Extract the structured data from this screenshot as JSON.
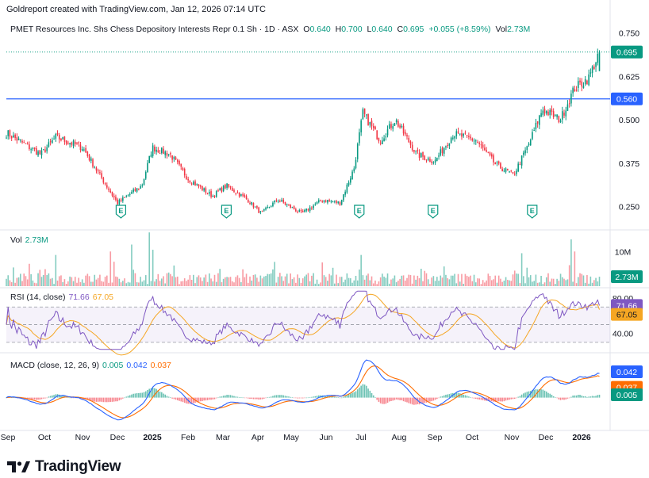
{
  "header": {
    "text": "Goldreport created with TradingView.com, Jan 12, 2026 07:14 UTC"
  },
  "legend": {
    "symbol": "PMET Resources Inc. Shs Chess Depository Interests Repr 0.1 Sh · 1D · ASX",
    "o_label": "O",
    "o": "0.640",
    "h_label": "H",
    "h": "0.700",
    "l_label": "L",
    "l": "0.640",
    "c_label": "C",
    "c": "0.695",
    "change": "+0.055 (+8.59%)",
    "vol_label": "Vol",
    "vol": "2.73M"
  },
  "volume_legend": {
    "label": "Vol",
    "value": "2.73M"
  },
  "rsi_legend": {
    "label": "RSI (14, close)",
    "rsi": "71.66",
    "ma": "67.05"
  },
  "macd_legend": {
    "label": "MACD (close, 12, 26, 9)",
    "hist": "0.005",
    "macd": "0.042",
    "signal": "0.037"
  },
  "footer": {
    "brand": "TradingView"
  },
  "colors": {
    "up": "#089981",
    "down": "#f23645",
    "rsi": "#7e57c2",
    "rsi_ma": "#f5a623",
    "macd": "#2962ff",
    "signal": "#ff6d00",
    "hline": "#2962ff"
  },
  "chart_data": [
    {
      "type": "candlestick",
      "title": "PMET Resources Inc. Shs Chess Depository Interests Repr 0.1 Sh · 1D · ASX",
      "x_tick_labels": [
        "Sep",
        "Oct",
        "Nov",
        "Dec",
        "2025",
        "Feb",
        "Mar",
        "Apr",
        "May",
        "Jun",
        "Jul",
        "Aug",
        "Sep",
        "Oct",
        "Nov",
        "Dec",
        "2026"
      ],
      "y_ticks": [
        "0.750",
        "0.625",
        "0.500",
        "0.375",
        "0.250"
      ],
      "ylim": [
        0.185,
        0.79
      ],
      "last_close": 0.695,
      "last_close_label": "0.695",
      "horizontal_line": 0.56,
      "horizontal_line_label": "0.560",
      "earnings_markers": {
        "label": "E",
        "months": [
          3.1,
          6.1,
          9.95,
          11.95,
          14.6
        ]
      },
      "monthly_anchors": [
        [
          0,
          0.46
        ],
        [
          0.9,
          0.4
        ],
        [
          1.3,
          0.45
        ],
        [
          2.0,
          0.42
        ],
        [
          2.5,
          0.34
        ],
        [
          3.0,
          0.26
        ],
        [
          3.7,
          0.31
        ],
        [
          4.0,
          0.42
        ],
        [
          4.5,
          0.4
        ],
        [
          5.0,
          0.33
        ],
        [
          5.7,
          0.28
        ],
        [
          6.1,
          0.31
        ],
        [
          6.7,
          0.27
        ],
        [
          7.1,
          0.23
        ],
        [
          7.6,
          0.27
        ],
        [
          8.3,
          0.23
        ],
        [
          8.9,
          0.27
        ],
        [
          9.4,
          0.26
        ],
        [
          9.8,
          0.36
        ],
        [
          10.05,
          0.52
        ],
        [
          10.5,
          0.44
        ],
        [
          10.9,
          0.5
        ],
        [
          11.5,
          0.4
        ],
        [
          12.0,
          0.38
        ],
        [
          12.5,
          0.46
        ],
        [
          13.1,
          0.44
        ],
        [
          13.6,
          0.37
        ],
        [
          14.05,
          0.34
        ],
        [
          14.5,
          0.43
        ],
        [
          14.9,
          0.53
        ],
        [
          15.4,
          0.5
        ],
        [
          15.8,
          0.59
        ],
        [
          16.2,
          0.62
        ],
        [
          16.5,
          0.695
        ]
      ]
    },
    {
      "type": "bar",
      "title": "Vol",
      "y_ticks": [
        "10M"
      ],
      "ylim": [
        0,
        16
      ],
      "last_value": 2.73,
      "last_value_label": "2.73M",
      "spikes_millions": [
        [
          1.3,
          9
        ],
        [
          2.8,
          10
        ],
        [
          3.4,
          12
        ],
        [
          3.9,
          15.5
        ],
        [
          4.0,
          10.5
        ],
        [
          7.5,
          7
        ],
        [
          10.0,
          9
        ],
        [
          14.3,
          9.5
        ],
        [
          15.7,
          13.5
        ],
        [
          15.8,
          10
        ]
      ]
    },
    {
      "type": "line",
      "title": "RSI (14, close)",
      "y_ticks": [
        "80.00",
        "40.00"
      ],
      "ylim": [
        20,
        90
      ],
      "band": [
        30,
        70
      ],
      "last_rsi": 71.66,
      "last_rsi_label": "71.66",
      "last_ma": 67.05,
      "last_ma_label": "67.05"
    },
    {
      "type": "line",
      "title": "MACD (close, 12, 26, 9)",
      "ylim": [
        -0.05,
        0.075
      ],
      "last_macd": 0.042,
      "last_macd_label": "0.042",
      "last_signal": 0.037,
      "last_signal_label": "0.037",
      "last_hist": 0.005,
      "last_hist_label": "0.005"
    }
  ]
}
